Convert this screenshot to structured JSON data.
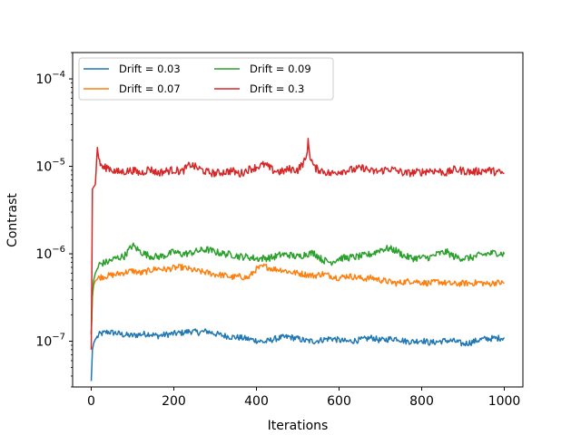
{
  "chart_data": {
    "type": "line",
    "title": "",
    "xlabel": "Iterations",
    "ylabel": "Contrast",
    "xlim": [
      -45,
      1045
    ],
    "ylim": [
      3e-08,
      0.0002
    ],
    "yscale": "log",
    "xticks": [
      0,
      200,
      400,
      600,
      800,
      1000
    ],
    "xtick_labels": [
      "0",
      "200",
      "400",
      "600",
      "800",
      "1000"
    ],
    "yticks": [
      1e-07,
      1e-06,
      1e-05,
      0.0001
    ],
    "ytick_labels": [
      {
        "base": "10",
        "exp": "−7"
      },
      {
        "base": "10",
        "exp": "−6"
      },
      {
        "base": "10",
        "exp": "−5"
      },
      {
        "base": "10",
        "exp": "−4"
      }
    ],
    "legend_position": "top-left",
    "legend_columns": 2,
    "grid": false,
    "series": [
      {
        "name": "Drift = 0.03",
        "color": "#1f77b4",
        "x": [
          0,
          3,
          6,
          10,
          20,
          40,
          60,
          80,
          100,
          120,
          140,
          160,
          180,
          200,
          220,
          240,
          260,
          280,
          300,
          320,
          340,
          360,
          380,
          400,
          420,
          440,
          460,
          480,
          500,
          520,
          540,
          560,
          580,
          600,
          620,
          640,
          660,
          680,
          700,
          720,
          740,
          760,
          780,
          800,
          820,
          840,
          860,
          880,
          900,
          920,
          940,
          960,
          980,
          1000
        ],
        "values": [
          3.5e-08,
          8e-08,
          9.5e-08,
          1.05e-07,
          1.2e-07,
          1.28e-07,
          1.24e-07,
          1.18e-07,
          1.16e-07,
          1.2e-07,
          1.22e-07,
          1.15e-07,
          1.19e-07,
          1.22e-07,
          1.25e-07,
          1.3e-07,
          1.26e-07,
          1.3e-07,
          1.22e-07,
          1.16e-07,
          1.12e-07,
          1.1e-07,
          1.06e-07,
          1.02e-07,
          9.8e-08,
          1.05e-07,
          1.1e-07,
          1.12e-07,
          1.07e-07,
          1.01e-07,
          1e-07,
          1.04e-07,
          1.08e-07,
          1.03e-07,
          9.9e-08,
          1.02e-07,
          1.05e-07,
          1.1e-07,
          1.02e-07,
          1.06e-07,
          1.08e-07,
          1e-07,
          9.9e-08,
          1.03e-07,
          9.6e-08,
          9.9e-08,
          1.02e-07,
          1e-07,
          9.3e-08,
          9.7e-08,
          1.04e-07,
          1.07e-07,
          1.08e-07,
          1.1e-07
        ]
      },
      {
        "name": "Drift = 0.07",
        "color": "#ff7f0e",
        "x": [
          0,
          3,
          6,
          10,
          20,
          40,
          60,
          80,
          100,
          120,
          140,
          160,
          180,
          200,
          220,
          240,
          260,
          280,
          300,
          320,
          340,
          360,
          380,
          400,
          420,
          440,
          460,
          480,
          500,
          520,
          540,
          560,
          580,
          600,
          620,
          640,
          660,
          680,
          700,
          720,
          740,
          760,
          780,
          800,
          820,
          840,
          860,
          880,
          900,
          920,
          940,
          960,
          980,
          1000
        ],
        "values": [
          1.2e-07,
          3.2e-07,
          4.4e-07,
          4.9e-07,
          5.4e-07,
          5.6e-07,
          5.8e-07,
          6.1e-07,
          6.4e-07,
          6e-07,
          6.4e-07,
          6.8e-07,
          6.6e-07,
          6.9e-07,
          7e-07,
          6.6e-07,
          6.3e-07,
          6.1e-07,
          5.8e-07,
          5.7e-07,
          5.4e-07,
          5.5e-07,
          5.3e-07,
          6.7e-07,
          7.2e-07,
          6.7e-07,
          6.6e-07,
          6.2e-07,
          6e-07,
          5.8e-07,
          5.6e-07,
          5.9e-07,
          5.6e-07,
          5.3e-07,
          5.6e-07,
          5.4e-07,
          5.2e-07,
          5.3e-07,
          5e-07,
          4.8e-07,
          4.6e-07,
          4.8e-07,
          4.9e-07,
          4.7e-07,
          4.6e-07,
          4.8e-07,
          4.6e-07,
          4.5e-07,
          4.6e-07,
          4.6e-07,
          4.7e-07,
          4.5e-07,
          4.7e-07,
          4.6e-07
        ]
      },
      {
        "name": "Drift = 0.09",
        "color": "#2ca02c",
        "x": [
          0,
          3,
          6,
          10,
          20,
          40,
          60,
          80,
          100,
          120,
          140,
          160,
          180,
          200,
          220,
          240,
          260,
          280,
          300,
          320,
          340,
          360,
          380,
          400,
          420,
          440,
          460,
          480,
          500,
          520,
          540,
          560,
          580,
          600,
          620,
          640,
          660,
          680,
          700,
          720,
          740,
          760,
          780,
          800,
          820,
          840,
          860,
          880,
          900,
          920,
          940,
          960,
          980,
          1000
        ],
        "values": [
          1.2e-07,
          3.5e-07,
          5e-07,
          6e-07,
          7.6e-07,
          8.1e-07,
          8.9e-07,
          9.4e-07,
          1.25e-06,
          1.05e-06,
          9.5e-07,
          9.2e-07,
          9.6e-07,
          1.05e-06,
          9.9e-07,
          1.02e-06,
          1.08e-06,
          1.12e-06,
          1.05e-06,
          1e-06,
          9.8e-07,
          9.3e-07,
          9.2e-07,
          8.8e-07,
          8.9e-07,
          9.1e-07,
          9.8e-07,
          9.7e-07,
          9.2e-07,
          1e-06,
          1.02e-06,
          8.5e-07,
          8e-07,
          8.9e-07,
          9e-07,
          9.2e-07,
          9.5e-07,
          1e-06,
          1.12e-06,
          1.15e-06,
          1.08e-06,
          9.3e-07,
          8.9e-07,
          9e-07,
          9.1e-07,
          1e-06,
          1.05e-06,
          9.2e-07,
          8.9e-07,
          9e-07,
          9.6e-07,
          1e-06,
          1.03e-06,
          9.9e-07
        ]
      },
      {
        "name": "Drift = 0.3",
        "color": "#d62728",
        "x": [
          0,
          3,
          6,
          10,
          15,
          20,
          30,
          40,
          60,
          80,
          100,
          120,
          140,
          160,
          180,
          200,
          220,
          240,
          260,
          280,
          300,
          320,
          340,
          360,
          380,
          400,
          420,
          440,
          460,
          480,
          500,
          520,
          525,
          530,
          540,
          560,
          580,
          600,
          620,
          640,
          660,
          680,
          700,
          720,
          740,
          760,
          780,
          800,
          820,
          840,
          860,
          880,
          900,
          920,
          940,
          960,
          980,
          1000
        ],
        "values": [
          8e-08,
          5.5e-06,
          5.8e-06,
          6.2e-06,
          1.65e-05,
          1.1e-05,
          9.5e-06,
          9.8e-06,
          8.6e-06,
          8.7e-06,
          9e-06,
          8.3e-06,
          9.4e-06,
          8.4e-06,
          8.8e-06,
          9.1e-06,
          8.7e-06,
          1.05e-05,
          9.4e-06,
          8.6e-06,
          8.3e-06,
          8.6e-06,
          8.9e-06,
          8.2e-06,
          9.2e-06,
          9.8e-06,
          1.05e-05,
          9e-06,
          8.6e-06,
          9.3e-06,
          9.1e-06,
          1.2e-05,
          1.9e-05,
          1.3e-05,
          9.6e-06,
          8.9e-06,
          8.2e-06,
          8.8e-06,
          9e-06,
          9.2e-06,
          9.6e-06,
          8.7e-06,
          8.8e-06,
          9.4e-06,
          8.9e-06,
          8.3e-06,
          8.5e-06,
          8.6e-06,
          9e-06,
          8.8e-06,
          8.4e-06,
          9.2e-06,
          8.9e-06,
          8.6e-06,
          8.8e-06,
          9.1e-06,
          8.6e-06,
          8.3e-06
        ]
      }
    ]
  }
}
